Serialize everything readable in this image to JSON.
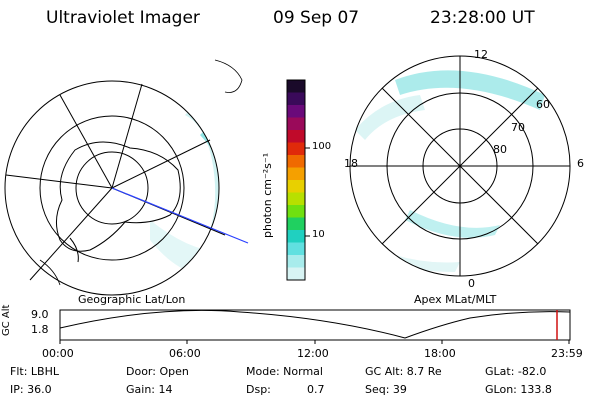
{
  "header": {
    "instrument": "Ultraviolet Imager",
    "date": "09 Sep 07",
    "time": "23:28:00 UT"
  },
  "left_panel": {
    "caption": "Geographic Lat/Lon"
  },
  "right_panel": {
    "caption": "Apex MLat/MLT",
    "mlt_labels": [
      "12",
      "18",
      "6",
      "0"
    ],
    "lat_labels": [
      "60",
      "70",
      "80"
    ]
  },
  "colorbar": {
    "unit_label": "photon cm⁻²s⁻¹",
    "tick_labels": [
      "100",
      "10"
    ],
    "colors": [
      "#1a0a2a",
      "#3a0a5a",
      "#6a0a7a",
      "#9a0a5a",
      "#c00a2a",
      "#e02a0a",
      "#f06a00",
      "#f5a000",
      "#e8d000",
      "#b8e000",
      "#70e010",
      "#20d060",
      "#20d0c0",
      "#60e0e0",
      "#a8ecec",
      "#d8f4f4"
    ]
  },
  "timeline": {
    "axis_title": "GC Alt",
    "y_ticks": [
      "9.0",
      "1.8"
    ],
    "x_ticks": [
      "00:00",
      "06:00",
      "12:00",
      "18:00",
      "23:59"
    ],
    "marker_color": "#d01010"
  },
  "status": {
    "filter": "Flt: LBHL",
    "ip": "IP: 36.0",
    "door": "Door: Open",
    "gain": "Gain: 14",
    "mode": "Mode: Normal",
    "dsp": "Dsp:",
    "dsp_value": "0.7",
    "gc_alt": "GC Alt: 8.7 Re",
    "seq": "Seq: 39",
    "glat": "GLat: -82.0",
    "glon": "GLon: 133.8"
  }
}
